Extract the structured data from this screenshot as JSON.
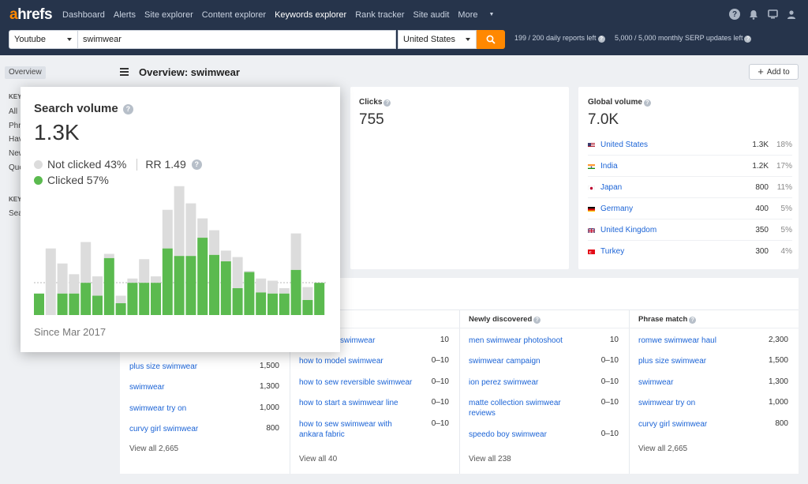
{
  "nav": {
    "logo_a": "a",
    "logo_rest": "hrefs",
    "links": [
      "Dashboard",
      "Alerts",
      "Site explorer",
      "Content explorer",
      "Keywords explorer",
      "Rank tracker",
      "Site audit",
      "More"
    ],
    "active": "Keywords explorer"
  },
  "search": {
    "source": "Youtube",
    "query": "swimwear",
    "country": "United States",
    "daily_reports": "199 / 200 daily reports left",
    "serp_updates": "5,000 / 5,000 monthly SERP updates left"
  },
  "sidebar": {
    "overview_tag": "Overview",
    "section1_head": "KEY",
    "section1_items": [
      "All",
      "Phr",
      "Hav",
      "New",
      "Que"
    ],
    "section2_head": "KEY",
    "section2_items": [
      "Sea"
    ]
  },
  "header": {
    "title": "Overview: swimwear",
    "add_to": "Add to"
  },
  "clicks": {
    "label": "Clicks",
    "value": "755"
  },
  "global_volume": {
    "label": "Global volume",
    "value": "7.0K",
    "countries": [
      {
        "name": "United States",
        "volume": "1.3K",
        "pct": "18%"
      },
      {
        "name": "India",
        "volume": "1.2K",
        "pct": "17%"
      },
      {
        "name": "Japan",
        "volume": "800",
        "pct": "11%"
      },
      {
        "name": "Germany",
        "volume": "400",
        "pct": "5%"
      },
      {
        "name": "United Kingdom",
        "volume": "350",
        "pct": "5%"
      },
      {
        "name": "Turkey",
        "volume": "300",
        "pct": "4%"
      }
    ]
  },
  "popover": {
    "title": "Search volume",
    "value": "1.3K",
    "not_clicked": "Not clicked 43%",
    "rr": "RR 1.49",
    "clicked": "Clicked 57%",
    "since": "Since Mar 2017",
    "colors": {
      "clicked": "#5bba4f",
      "not_clicked": "#dcdcdc"
    }
  },
  "chart_data": {
    "type": "bar",
    "stacked": true,
    "series": [
      {
        "name": "Clicked",
        "values": [
          0.2,
          0,
          0.2,
          0.2,
          0.3,
          0.18,
          0.53,
          0.11,
          0.3,
          0.3,
          0.3,
          0.62,
          0.55,
          0.55,
          0.72,
          0.56,
          0.5,
          0.25,
          0.4,
          0.21,
          0.2,
          0.2,
          0.42,
          0.14,
          0.3
        ]
      },
      {
        "name": "Not clicked",
        "values": [
          0,
          0.62,
          0.28,
          0.18,
          0.38,
          0.18,
          0.04,
          0.07,
          0.04,
          0.22,
          0.06,
          0.36,
          0.65,
          0.49,
          0.18,
          0.23,
          0.1,
          0.29,
          0.01,
          0.13,
          0.12,
          0.05,
          0.34,
          0.12,
          0
        ]
      }
    ],
    "grid": false
  },
  "table": {
    "columns": [
      {
        "head": "",
        "rows": [
          {
            "kw": "",
            "vol": ""
          },
          {
            "kw": "plus size swimwear",
            "vol": "1,500"
          },
          {
            "kw": "swimwear",
            "vol": "1,300"
          },
          {
            "kw": "swimwear try on",
            "vol": "1,000"
          },
          {
            "kw": "curvy girl swimwear",
            "vol": "800"
          }
        ],
        "view_all": "View all 2,665"
      },
      {
        "head": "ew",
        "rows": [
          {
            "kw": "swimwear",
            "vol": "10"
          },
          {
            "kw": "how to model swimwear",
            "vol": "0–10"
          },
          {
            "kw": "how to sew reversible swimwear",
            "vol": "0–10"
          },
          {
            "kw": "how to start a swimwear line",
            "vol": "0–10"
          },
          {
            "kw": "how to sew swimwear with ankara fabric",
            "vol": "0–10"
          }
        ],
        "view_all": "View all 40"
      },
      {
        "head": "Newly discovered",
        "rows": [
          {
            "kw": "men swimwear photoshoot",
            "vol": "10"
          },
          {
            "kw": "swimwear campaign",
            "vol": "0–10"
          },
          {
            "kw": "ion perez swimwear",
            "vol": "0–10"
          },
          {
            "kw": "matte collection swimwear reviews",
            "vol": "0–10"
          },
          {
            "kw": "speedo boy swimwear",
            "vol": "0–10"
          }
        ],
        "view_all": "View all 238"
      },
      {
        "head": "Phrase match",
        "rows": [
          {
            "kw": "romwe swimwear haul",
            "vol": "2,300"
          },
          {
            "kw": "plus size swimwear",
            "vol": "1,500"
          },
          {
            "kw": "swimwear",
            "vol": "1,300"
          },
          {
            "kw": "swimwear try on",
            "vol": "1,000"
          },
          {
            "kw": "curvy girl swimwear",
            "vol": "800"
          }
        ],
        "view_all": "View all 2,665"
      }
    ]
  }
}
